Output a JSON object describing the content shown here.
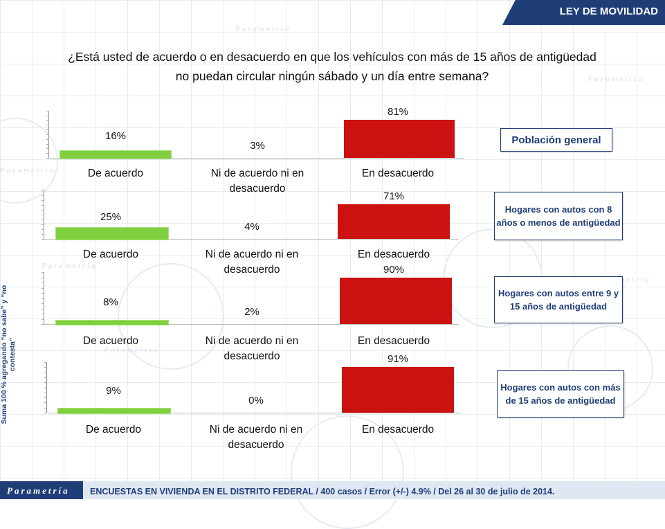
{
  "header": {
    "title": "LEY DE MOVILIDAD"
  },
  "question": {
    "line1": "¿Está usted de acuerdo o en desacuerdo en que los vehículos con más de 15 años de antigüedad",
    "line2": "no puedan circular ningún sábado y un día entre semana?"
  },
  "side_note": "Suma 100 % agregando “no sabe” y “no contesta”",
  "footer": {
    "brand": "Parametría",
    "text": "ENCUESTAS EN VIVIENDA EN EL DISTRITO FEDERAL / 400 casos / Error (+/-) 4.9% / Del 26 al 30 de julio de 2014."
  },
  "chart_data": [
    {
      "type": "bar",
      "segment": "Población general",
      "categories": [
        "De acuerdo",
        "Ni de acuerdo ni en desacuerdo",
        "En desacuerdo"
      ],
      "values": [
        16,
        3,
        81
      ],
      "value_labels": [
        "16%",
        "3%",
        "81%"
      ],
      "ylim": [
        0,
        100
      ]
    },
    {
      "type": "bar",
      "segment": "Hogares con autos con 8 años o menos de antigüedad",
      "categories": [
        "De acuerdo",
        "Ni de acuerdo ni en desacuerdo",
        "En desacuerdo"
      ],
      "values": [
        25,
        4,
        71
      ],
      "value_labels": [
        "25%",
        "4%",
        "71%"
      ],
      "ylim": [
        0,
        100
      ]
    },
    {
      "type": "bar",
      "segment": "Hogares con autos entre 9 y 15 años de antigüedad",
      "categories": [
        "De acuerdo",
        "Ni de acuerdo ni en desacuerdo",
        "En desacuerdo"
      ],
      "values": [
        8,
        2,
        90
      ],
      "value_labels": [
        "8%",
        "2%",
        "90%"
      ],
      "ylim": [
        0,
        100
      ]
    },
    {
      "type": "bar",
      "segment": "Hogares con autos con más de 15 años de antigüedad",
      "categories": [
        "De acuerdo",
        "Ni de acuerdo ni en desacuerdo",
        "En desacuerdo"
      ],
      "values": [
        9,
        0,
        91
      ],
      "value_labels": [
        "9%",
        "0%",
        "91%"
      ],
      "ylim": [
        0,
        100
      ]
    }
  ],
  "colors": {
    "agree": "#7fcf3e",
    "neutral": "#9e9e9e",
    "disagree": "#cc1111",
    "brand": "#1f3e78"
  }
}
